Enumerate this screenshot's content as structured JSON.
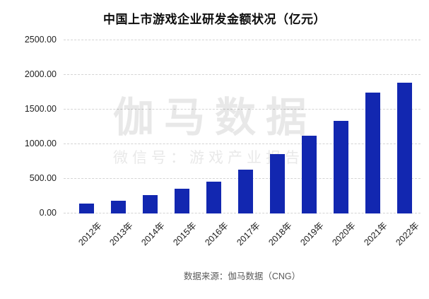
{
  "header": {
    "title": "中国上市游戏企业研发金额状况（亿元）"
  },
  "watermark": {
    "brand": "伽马数据",
    "wechat": "微信号：游戏产业报告"
  },
  "footer": {
    "source": "数据来源：伽马数据（CNG）"
  },
  "chart_data": {
    "type": "bar",
    "title": "中国上市游戏企业研发金额状况（亿元）",
    "categories": [
      "2012年",
      "2013年",
      "2014年",
      "2015年",
      "2016年",
      "2017年",
      "2018年",
      "2019年",
      "2020年",
      "2021年",
      "2022年"
    ],
    "values": [
      145,
      185,
      265,
      360,
      455,
      635,
      860,
      1125,
      1340,
      1740,
      1890
    ],
    "ylim": [
      0,
      2500
    ],
    "ytick_step": 500,
    "ytick_labels": [
      "0.00",
      "500.00",
      "1000.00",
      "1500.00",
      "2000.00",
      "2500.00"
    ],
    "grid": true,
    "legend_position": "none",
    "bar_color": "#1227b0",
    "grid_color": "#d4d4d4",
    "xlabel": "",
    "ylabel": ""
  }
}
